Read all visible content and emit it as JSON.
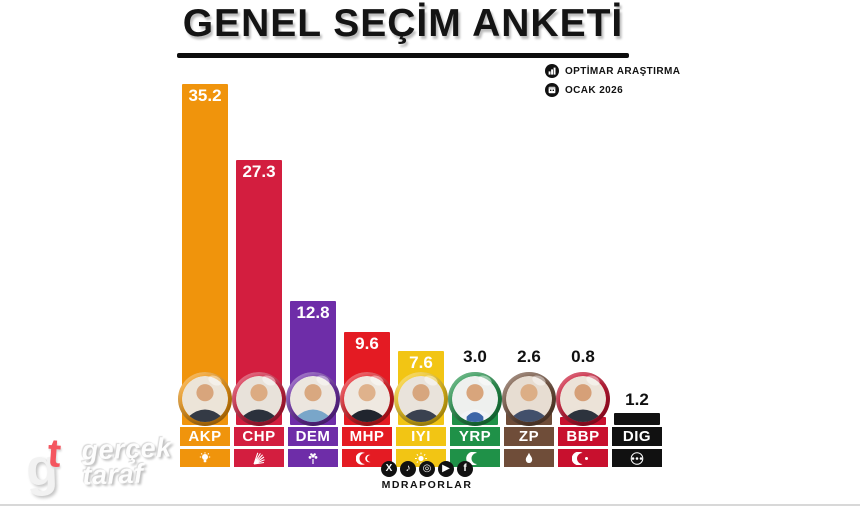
{
  "header": {
    "title": "GENEL SEÇİM ANKETİ"
  },
  "meta": {
    "source": "OPTİMAR ARAŞTIRMA",
    "period": "OCAK 2026"
  },
  "chart_data": {
    "type": "bar",
    "title": "GENEL SEÇİM ANKETİ",
    "source": "OPTİMAR ARAŞTIRMA",
    "period": "OCAK 2026",
    "categories": [
      "AKP",
      "CHP",
      "DEM",
      "MHP",
      "IYI",
      "YRP",
      "ZP",
      "BBP",
      "DIG"
    ],
    "values": [
      35.2,
      27.3,
      12.8,
      9.6,
      7.6,
      3.0,
      2.6,
      0.8,
      1.2
    ],
    "unit": "percent",
    "ylim": [
      0,
      40
    ],
    "grid": false,
    "legend": "none",
    "value_labels": "shown",
    "bar_colors": [
      "#F0940C",
      "#D31E3F",
      "#6E2DA8",
      "#E41B23",
      "#F2C514",
      "#1F9148",
      "#6F4D39",
      "#C8102E",
      "#111111"
    ]
  },
  "parties": [
    {
      "abbr": "AKP",
      "value": 35.2,
      "value_label": "35.2",
      "color": "#F0940C",
      "has_photo": true,
      "logo": "akp-bulb-icon"
    },
    {
      "abbr": "CHP",
      "value": 27.3,
      "value_label": "27.3",
      "color": "#D31E3F",
      "has_photo": true,
      "logo": "chp-six-arrows-icon"
    },
    {
      "abbr": "DEM",
      "value": 12.8,
      "value_label": "12.8",
      "color": "#6E2DA8",
      "has_photo": true,
      "logo": "dem-tree-icon"
    },
    {
      "abbr": "MHP",
      "value": 9.6,
      "value_label": "9.6",
      "color": "#E41B23",
      "has_photo": true,
      "logo": "mhp-crescents-icon"
    },
    {
      "abbr": "IYI",
      "value": 7.6,
      "value_label": "7.6",
      "color": "#F2C514",
      "has_photo": true,
      "logo": "iyi-sun-icon"
    },
    {
      "abbr": "YRP",
      "value": 3.0,
      "value_label": "3.0",
      "color": "#1F9148",
      "has_photo": true,
      "logo": "yrp-crescent-icon"
    },
    {
      "abbr": "ZP",
      "value": 2.6,
      "value_label": "2.6",
      "color": "#6F4D39",
      "has_photo": true,
      "logo": "zp-droplet-icon"
    },
    {
      "abbr": "BBP",
      "value": 0.8,
      "value_label": "0.8",
      "color": "#C8102E",
      "has_photo": true,
      "logo": "bbp-crescent-star-icon"
    },
    {
      "abbr": "DIG",
      "value": 1.2,
      "value_label": "1.2",
      "color": "#111111",
      "has_photo": false,
      "logo": "dig-ellipsis-icon"
    }
  ],
  "watermark": {
    "monogram_g": "g",
    "monogram_t": "t",
    "line1": "gerçek",
    "line2": "taraf"
  },
  "footer": {
    "handle": "MDRAPORLAR",
    "social": [
      "X",
      "♪",
      "◎",
      "▶",
      "f"
    ]
  }
}
